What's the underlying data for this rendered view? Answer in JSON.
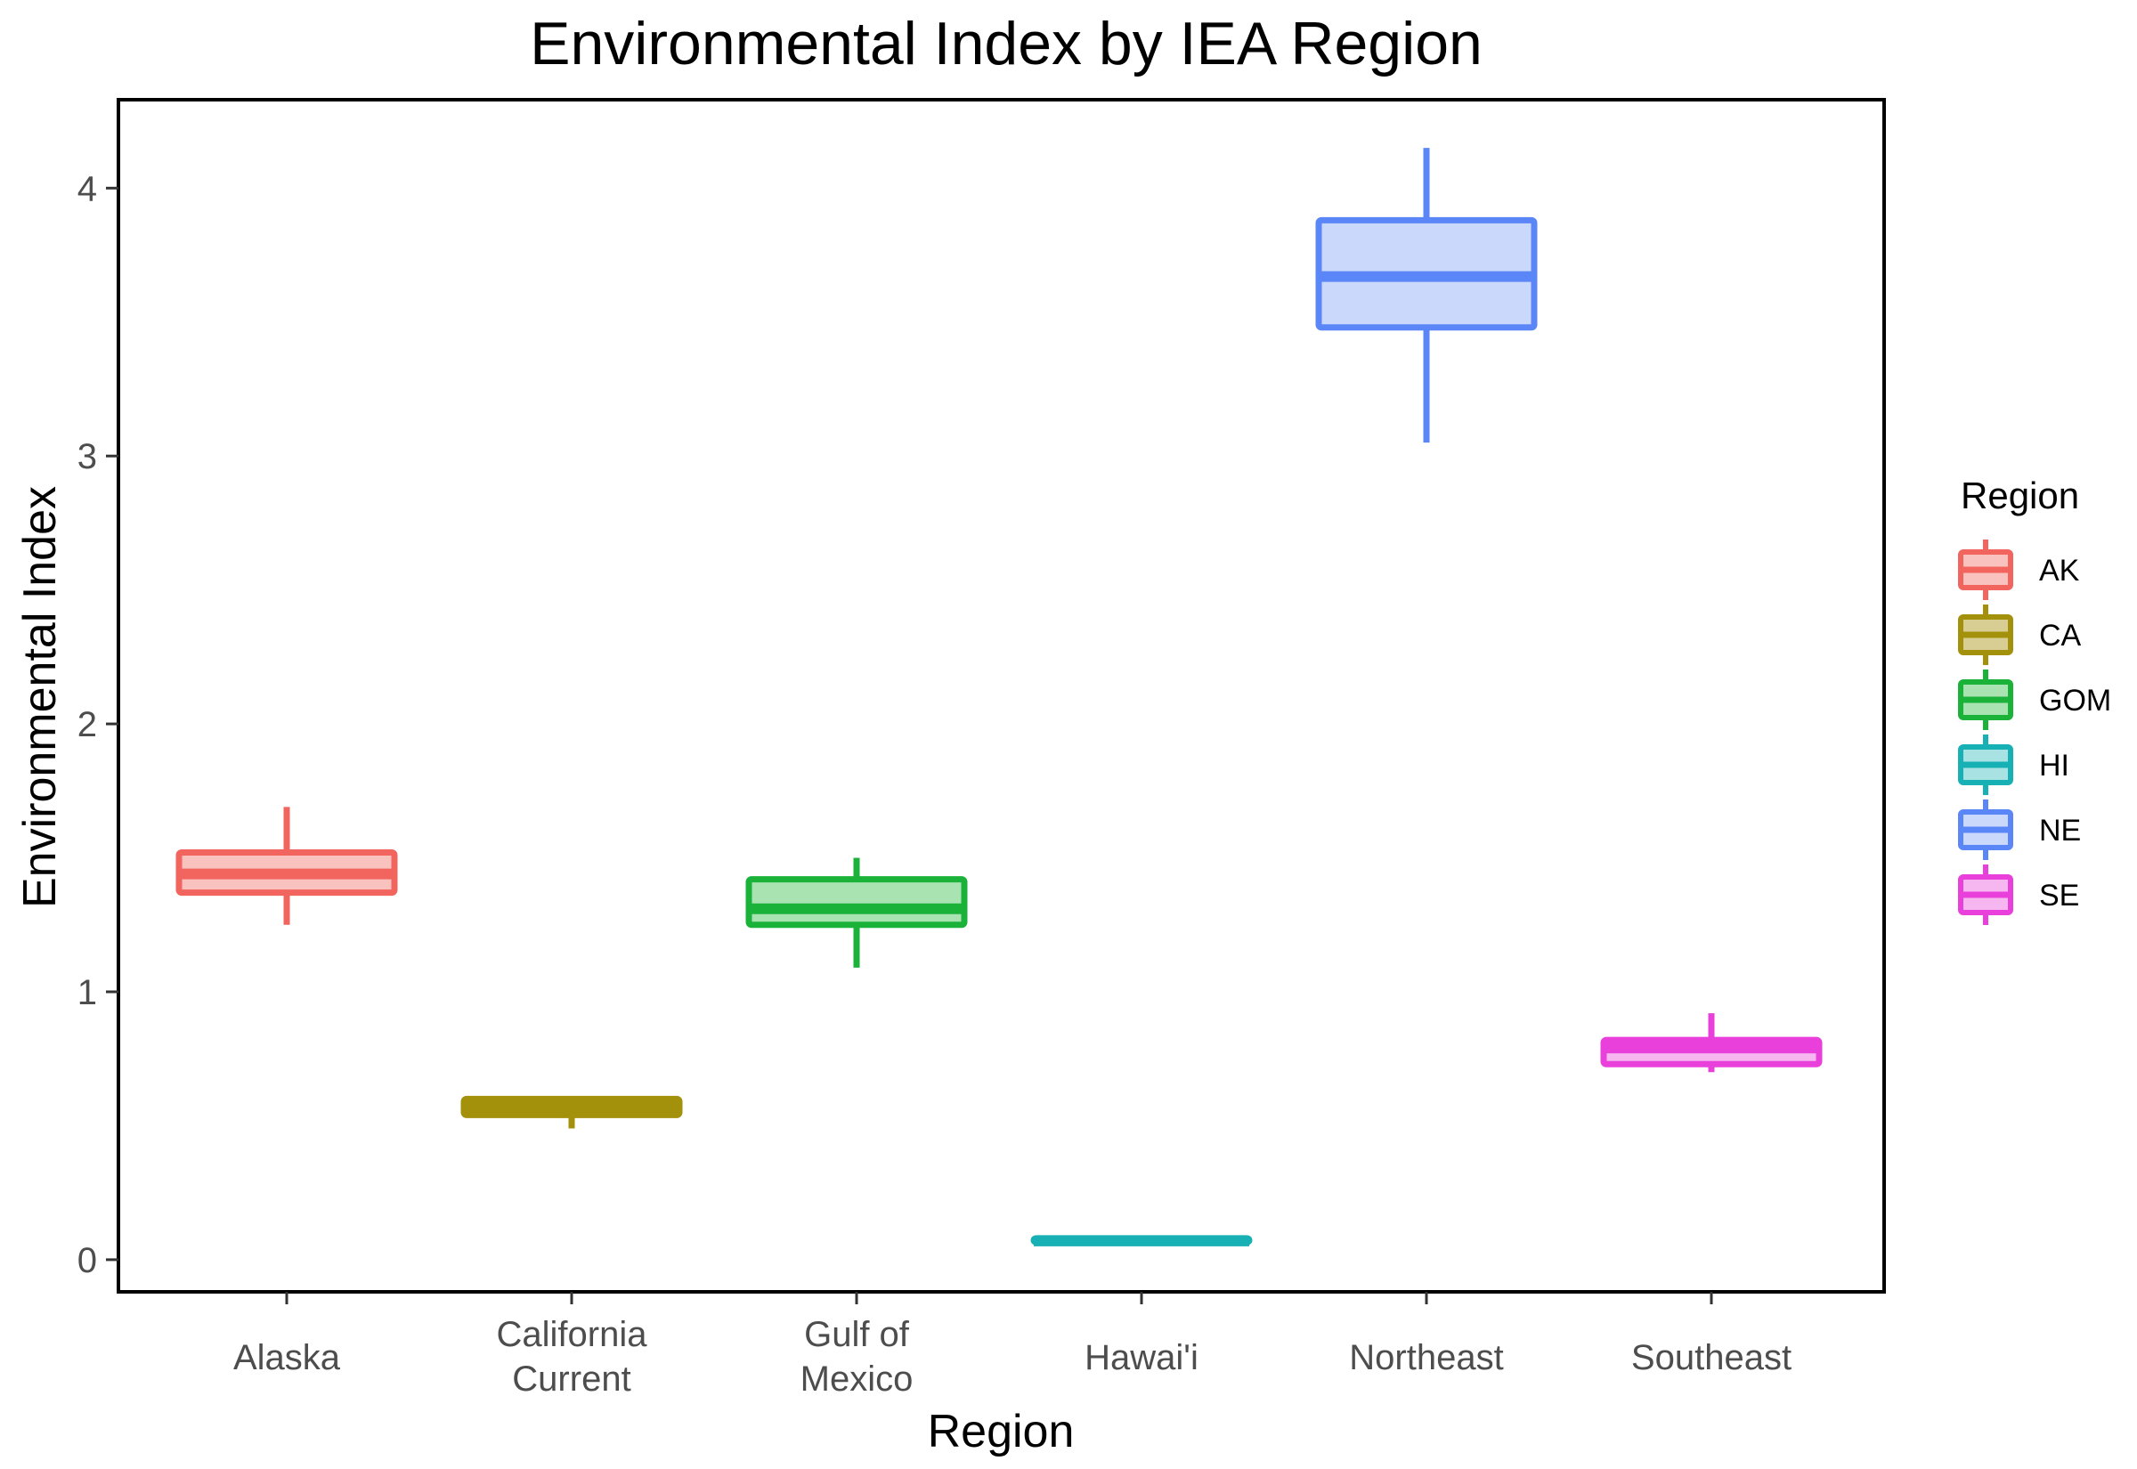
{
  "chart_data": {
    "type": "boxplot",
    "title": "Environmental Index by IEA Region",
    "xlabel": "Region",
    "ylabel": "Environmental Index",
    "ylim": [
      -0.12,
      4.33
    ],
    "yticks": [
      "0",
      "1",
      "2",
      "3",
      "4"
    ],
    "grid": false,
    "legend": {
      "title": "Region",
      "placement": "right"
    },
    "categories": [
      {
        "label": [
          "Alaska"
        ],
        "code": "AK",
        "color": "#F2645E",
        "fill": "#F9C2BF",
        "min": 1.25,
        "q1": 1.37,
        "median": 1.44,
        "q3": 1.52,
        "max": 1.69
      },
      {
        "label": [
          "California",
          "Current"
        ],
        "code": "CA",
        "color": "#A3900B",
        "fill": "#D8CE93",
        "min": 0.49,
        "q1": 0.54,
        "median": 0.57,
        "q3": 0.6,
        "max": 0.61
      },
      {
        "label": [
          "Gulf of",
          "Mexico"
        ],
        "code": "GOM",
        "color": "#1BB23A",
        "fill": "#A9E3B2",
        "min": 1.09,
        "q1": 1.25,
        "median": 1.31,
        "q3": 1.42,
        "max": 1.5
      },
      {
        "label": [
          "Hawai'i"
        ],
        "code": "HI",
        "color": "#17B1B5",
        "fill": "#A8E2E3",
        "min": 0.06,
        "q1": 0.065,
        "median": 0.07,
        "q3": 0.08,
        "max": 0.09
      },
      {
        "label": [
          "Northeast"
        ],
        "code": "NE",
        "color": "#5B86F7",
        "fill": "#CAD8FB",
        "min": 3.05,
        "q1": 3.48,
        "median": 3.67,
        "q3": 3.88,
        "max": 4.15
      },
      {
        "label": [
          "Southeast"
        ],
        "code": "SE",
        "color": "#EA40DB",
        "fill": "#F6B6F0",
        "min": 0.7,
        "q1": 0.73,
        "median": 0.79,
        "q3": 0.82,
        "max": 0.92
      }
    ]
  }
}
